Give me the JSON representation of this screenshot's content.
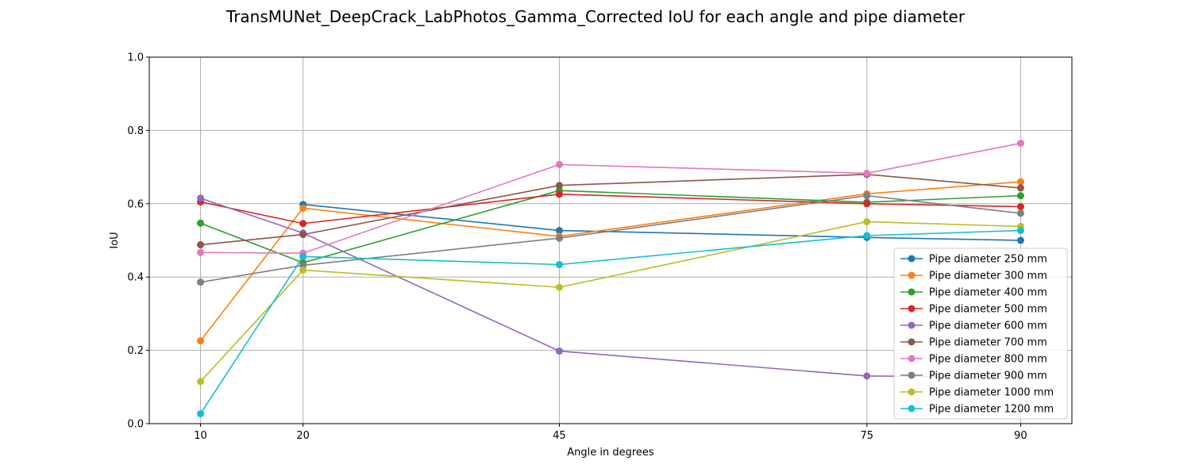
{
  "chart_data": {
    "type": "line",
    "title": "TransMUNet_DeepCrack_LabPhotos_Gamma_Corrected IoU for each angle and pipe diameter",
    "xlabel": "Angle in degrees",
    "ylabel": "IoU",
    "x": [
      10,
      20,
      45,
      75,
      90
    ],
    "x_tick_labels": [
      "10",
      "20",
      "45",
      "75",
      "90"
    ],
    "xlim": [
      5,
      95
    ],
    "ylim": [
      0,
      1
    ],
    "y_ticks": [
      0,
      0.2,
      0.4,
      0.6,
      0.8,
      1.0
    ],
    "y_tick_labels": [
      "0.0",
      "0.2",
      "0.4",
      "0.6",
      "0.8",
      "1.0"
    ],
    "grid": true,
    "legend_position": "lower-right",
    "series": [
      {
        "name": "Pipe diameter 250 mm",
        "color": "#1f77b4",
        "values": [
          null,
          0.598,
          0.527,
          0.508,
          0.5
        ]
      },
      {
        "name": "Pipe diameter 300 mm",
        "color": "#ff7f0e",
        "values": [
          0.226,
          0.588,
          0.511,
          0.627,
          0.66
        ]
      },
      {
        "name": "Pipe diameter 400 mm",
        "color": "#2ca02c",
        "values": [
          0.547,
          0.439,
          0.636,
          0.604,
          0.622
        ]
      },
      {
        "name": "Pipe diameter 500 mm",
        "color": "#d62728",
        "values": [
          0.605,
          0.546,
          0.626,
          0.6,
          0.592
        ]
      },
      {
        "name": "Pipe diameter 600 mm",
        "color": "#9467bd",
        "values": [
          0.615,
          0.52,
          0.198,
          0.13,
          0.127
        ]
      },
      {
        "name": "Pipe diameter 700 mm",
        "color": "#8c564b",
        "values": [
          0.488,
          0.516,
          0.65,
          0.68,
          0.643
        ]
      },
      {
        "name": "Pipe diameter 800 mm",
        "color": "#e377c2",
        "values": [
          0.467,
          0.465,
          0.707,
          0.683,
          0.765
        ]
      },
      {
        "name": "Pipe diameter 900 mm",
        "color": "#7f7f7f",
        "values": [
          0.386,
          0.432,
          0.506,
          0.622,
          0.574
        ]
      },
      {
        "name": "Pipe diameter 1000 mm",
        "color": "#bcbd22",
        "values": [
          0.115,
          0.419,
          0.372,
          0.551,
          0.538
        ]
      },
      {
        "name": "Pipe diameter 1200 mm",
        "color": "#17becf",
        "values": [
          0.027,
          0.456,
          0.434,
          0.513,
          0.527
        ]
      }
    ]
  }
}
